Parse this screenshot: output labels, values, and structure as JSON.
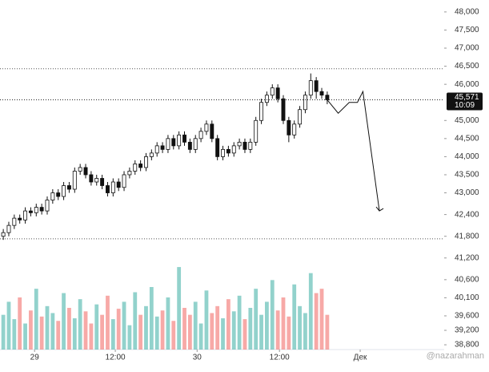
{
  "chart_data": {
    "type": "candlestick",
    "open": [
      41800,
      41900,
      42100,
      42300,
      42250,
      42500,
      42450,
      42600,
      42500,
      42800,
      43000,
      42900,
      43200,
      43100,
      43600,
      43700,
      43500,
      43300,
      43400,
      43200,
      43000,
      43300,
      43150,
      43500,
      43600,
      43800,
      43700,
      44000,
      44100,
      44300,
      44200,
      44500,
      44300,
      44600,
      44400,
      44200,
      44500,
      44700,
      44900,
      44500,
      44000,
      44200,
      44100,
      44300,
      44400,
      44200,
      44400,
      45000,
      45500,
      45700,
      45900,
      45600,
      45000,
      44600,
      44900,
      45300,
      45700,
      46100,
      45800,
      45700
    ],
    "high": [
      42000,
      42200,
      42400,
      42400,
      42600,
      42600,
      42700,
      42700,
      42900,
      43100,
      43100,
      43300,
      43300,
      43700,
      43800,
      43800,
      43600,
      43500,
      43500,
      43300,
      43400,
      43400,
      43600,
      43700,
      43900,
      43900,
      44100,
      44200,
      44400,
      44400,
      44600,
      44600,
      44700,
      44700,
      44500,
      44600,
      44800,
      45000,
      45000,
      44600,
      44300,
      44300,
      44400,
      44500,
      44500,
      44500,
      45100,
      45600,
      45800,
      46000,
      46000,
      45700,
      45100,
      45000,
      45400,
      45800,
      46300,
      46200,
      45900,
      45800
    ],
    "low": [
      41700,
      41800,
      42000,
      42150,
      42150,
      42350,
      42350,
      42400,
      42400,
      42700,
      42800,
      42800,
      43000,
      43000,
      43500,
      43400,
      43200,
      43200,
      43100,
      42900,
      42900,
      43050,
      43050,
      43400,
      43500,
      43600,
      43600,
      43900,
      44000,
      44100,
      44100,
      44200,
      44200,
      44300,
      44100,
      44100,
      44400,
      44600,
      44400,
      43900,
      43900,
      44000,
      44000,
      44200,
      44100,
      44100,
      44300,
      44900,
      45400,
      45600,
      45500,
      44900,
      44400,
      44500,
      44800,
      45200,
      45600,
      45600,
      45600,
      45450
    ],
    "close": [
      41900,
      42100,
      42300,
      42250,
      42500,
      42450,
      42600,
      42500,
      42800,
      43000,
      42900,
      43200,
      43100,
      43600,
      43700,
      43500,
      43300,
      43400,
      43200,
      43000,
      43300,
      43150,
      43500,
      43600,
      43800,
      43700,
      44000,
      44100,
      44300,
      44200,
      44500,
      44300,
      44600,
      44400,
      44200,
      44500,
      44700,
      44900,
      44500,
      44000,
      44200,
      44100,
      44300,
      44400,
      44200,
      44400,
      45000,
      45500,
      45700,
      45900,
      45600,
      45000,
      44600,
      44900,
      45300,
      45700,
      46100,
      45800,
      45700,
      45571
    ],
    "volume": [
      40,
      55,
      35,
      60,
      30,
      45,
      70,
      38,
      50,
      42,
      33,
      65,
      48,
      36,
      58,
      44,
      30,
      52,
      40,
      62,
      35,
      47,
      55,
      28,
      66,
      40,
      50,
      72,
      38,
      45,
      60,
      33,
      95,
      48,
      40,
      55,
      30,
      68,
      42,
      50,
      36,
      58,
      44,
      62,
      35,
      48,
      70,
      40,
      55,
      80,
      45,
      60,
      38,
      75,
      50,
      42,
      88,
      65,
      70,
      40
    ],
    "volume_max": 120,
    "xlim": [
      -0.6,
      80.3
    ],
    "ylim": [
      38580,
      48330
    ],
    "yticks": [
      {
        "value": 48000,
        "label": "48,000"
      },
      {
        "value": 47500,
        "label": "47,500"
      },
      {
        "value": 47000,
        "label": "47,000"
      },
      {
        "value": 46500,
        "label": "46,500"
      },
      {
        "value": 46000,
        "label": "46,000"
      },
      {
        "value": 45000,
        "label": "45,000"
      },
      {
        "value": 44500,
        "label": "44,500"
      },
      {
        "value": 44000,
        "label": "44,000"
      },
      {
        "value": 43500,
        "label": "43,500"
      },
      {
        "value": 43000,
        "label": "43,000"
      },
      {
        "value": 42400,
        "label": "42,400"
      },
      {
        "value": 41800,
        "label": "41,800"
      },
      {
        "value": 41200,
        "label": "41,200"
      },
      {
        "value": 40600,
        "label": "40,600"
      },
      {
        "value": 40100,
        "label": "40,100"
      },
      {
        "value": 39600,
        "label": "39,600"
      },
      {
        "value": 39200,
        "label": "39,200"
      },
      {
        "value": 38800,
        "label": "38,800"
      }
    ],
    "xticks": [
      {
        "value": 5.7,
        "label": "29"
      },
      {
        "value": 20.4,
        "label": "12:00"
      },
      {
        "value": 35.3,
        "label": "30"
      },
      {
        "value": 50.3,
        "label": "12:00"
      },
      {
        "value": 65,
        "label": "Дек"
      }
    ],
    "hlines": [
      46430,
      41730
    ],
    "last_price_label": "45,571",
    "countdown": "10:09",
    "drawing": {
      "x": [
        59,
        61,
        63,
        64.5,
        65.5,
        68.5
      ],
      "y": [
        45571,
        45200,
        45500,
        45500,
        45800,
        42500
      ]
    },
    "up_color": "#26a69a",
    "down_color": "#ef5350",
    "watermark": "@nazarahman"
  }
}
